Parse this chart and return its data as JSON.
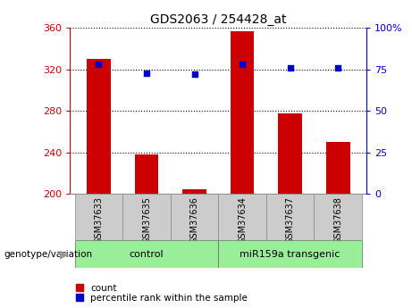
{
  "title": "GDS2063 / 254428_at",
  "categories": [
    "GSM37633",
    "GSM37635",
    "GSM37636",
    "GSM37634",
    "GSM37637",
    "GSM37638"
  ],
  "bar_values": [
    330,
    238,
    205,
    357,
    278,
    250
  ],
  "dot_values_left": [
    325,
    316,
    315,
    325,
    321,
    321
  ],
  "ylim_left": [
    200,
    360
  ],
  "ylim_right": [
    0,
    100
  ],
  "yticks_left": [
    200,
    240,
    280,
    320,
    360
  ],
  "yticks_right": [
    0,
    25,
    50,
    75,
    100
  ],
  "bar_color": "#cc0000",
  "dot_color": "#0000cc",
  "ax_color_left": "#cc0000",
  "ax_color_right": "#0000cc",
  "group_labels": [
    "control",
    "miR159a transgenic"
  ],
  "group_colors": [
    "#99ee99",
    "#99ee99"
  ],
  "legend_count": "count",
  "legend_percentile": "percentile rank within the sample",
  "xlabel": "genotype/variation",
  "bg_plot": "#ffffff",
  "sample_bg": "#cccccc",
  "title_fontsize": 10
}
